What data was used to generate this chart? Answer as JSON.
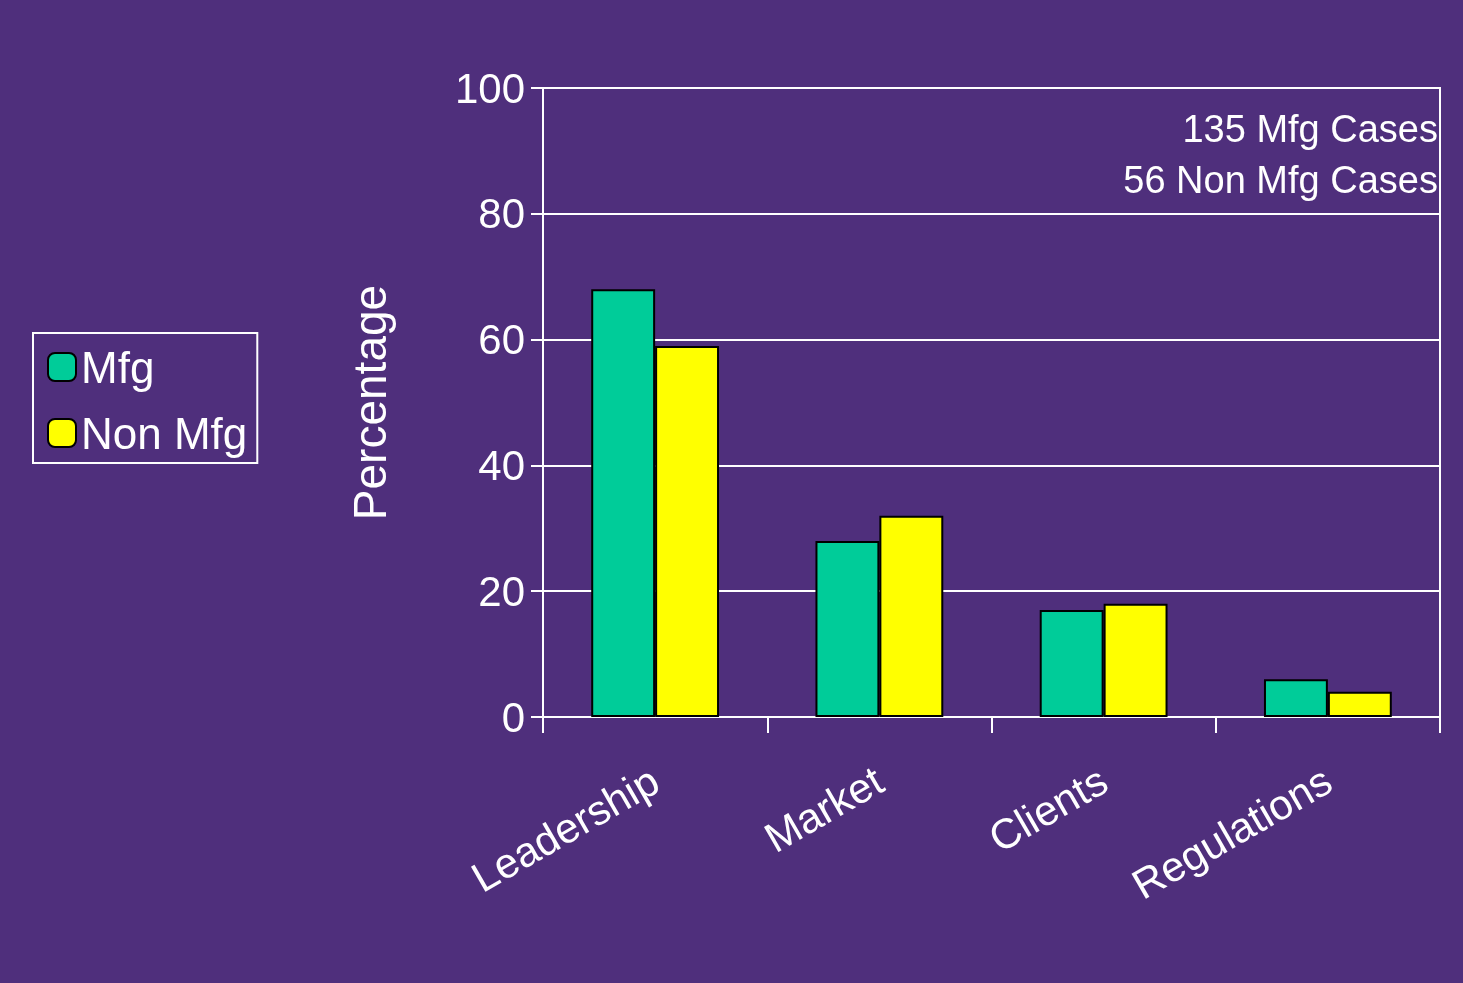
{
  "chart_data": {
    "type": "bar",
    "ylabel": "Percentage",
    "categories": [
      "Leadership",
      "Market",
      "Clients",
      "Regulations"
    ],
    "series": [
      {
        "name": "Mfg",
        "color": "#00cc99",
        "values": [
          68,
          28,
          17,
          6
        ]
      },
      {
        "name": "Non Mfg",
        "color": "#ffff00",
        "values": [
          59,
          32,
          18,
          4
        ]
      }
    ],
    "ylim": [
      0,
      100
    ],
    "yticks": [
      0,
      20,
      40,
      60,
      80,
      100
    ],
    "grid": "y",
    "legend": "left",
    "annotations": [
      "135 Mfg Cases",
      "56 Non Mfg Cases"
    ]
  }
}
